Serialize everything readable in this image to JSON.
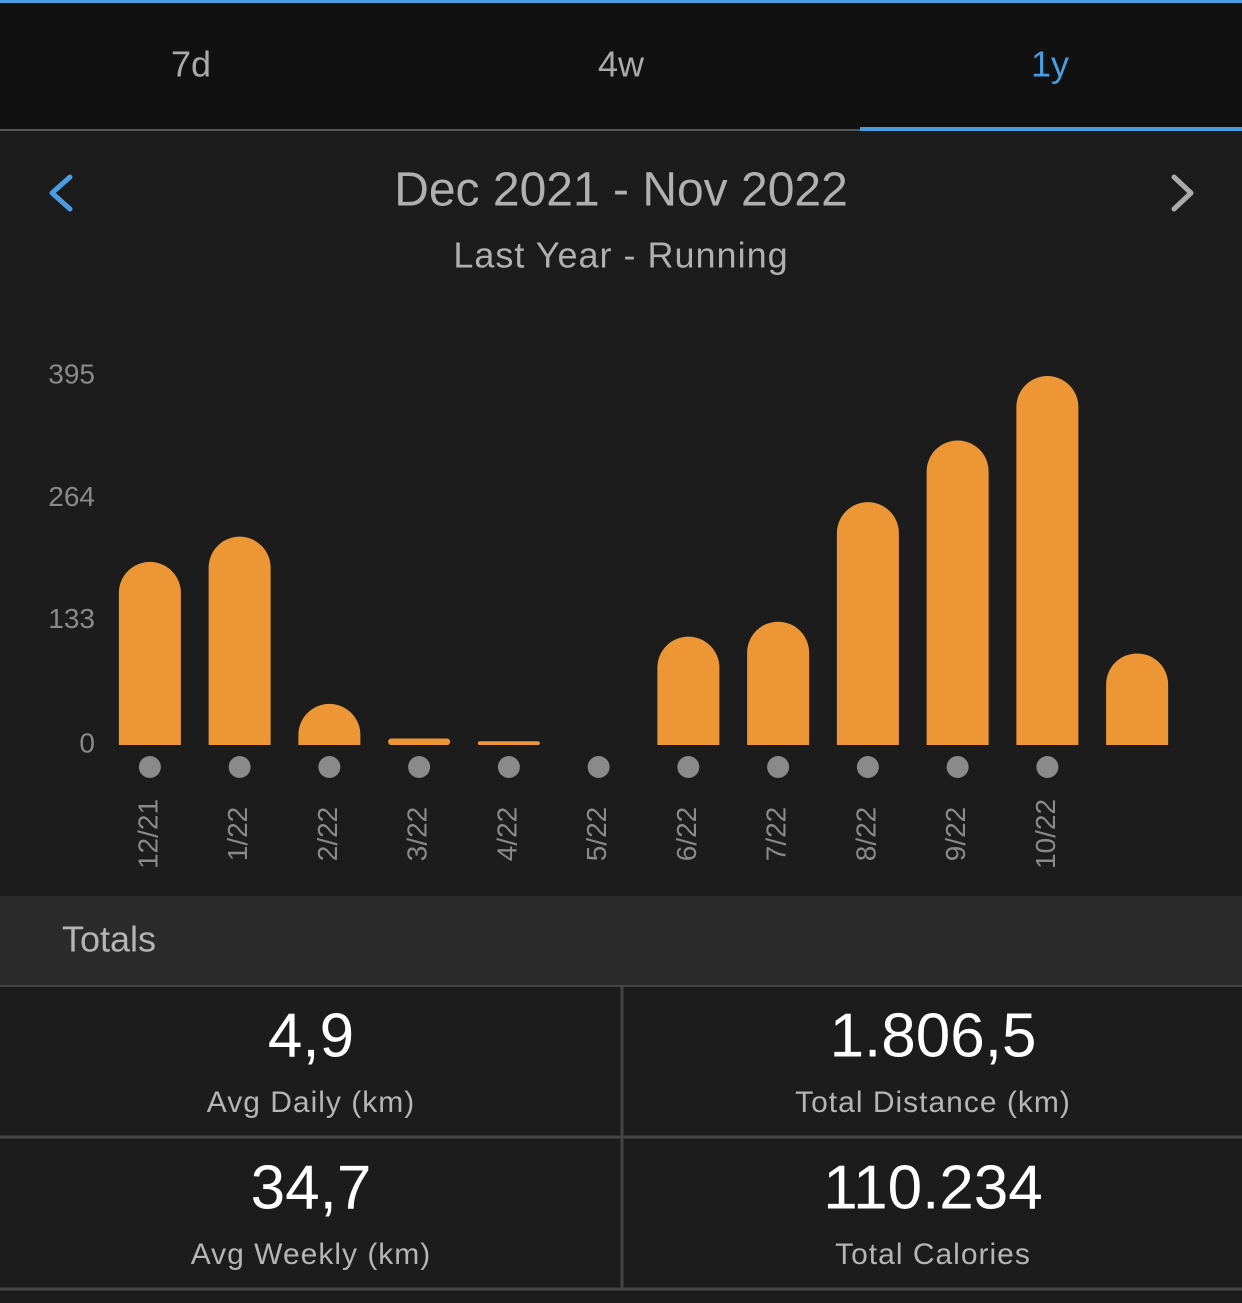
{
  "tabs": [
    "7d",
    "4w",
    "1y"
  ],
  "header": {
    "title": "Dec 2021 - Nov 2022",
    "subtitle": "Last Year - Running"
  },
  "chart_data": {
    "type": "bar",
    "categories": [
      "12/21",
      "1/22",
      "2/22",
      "3/22",
      "4/22",
      "5/22",
      "6/22",
      "7/22",
      "8/22",
      "9/22",
      "10/22",
      null
    ],
    "values": [
      196,
      223,
      44,
      7,
      4,
      0,
      116,
      132,
      260,
      326,
      395,
      98
    ],
    "color": "#ec9636",
    "ylim": [
      0,
      395
    ],
    "yticks": [
      0,
      133,
      264,
      395
    ],
    "grid": false
  },
  "totals": {
    "title": "Totals",
    "items": [
      {
        "value": "4,9",
        "label": "Avg Daily (km)"
      },
      {
        "value": "1.806,5",
        "label": "Total Distance (km)"
      },
      {
        "value": "34,7",
        "label": "Avg Weekly (km)"
      },
      {
        "value": "110.234",
        "label": "Total Calories"
      }
    ]
  }
}
